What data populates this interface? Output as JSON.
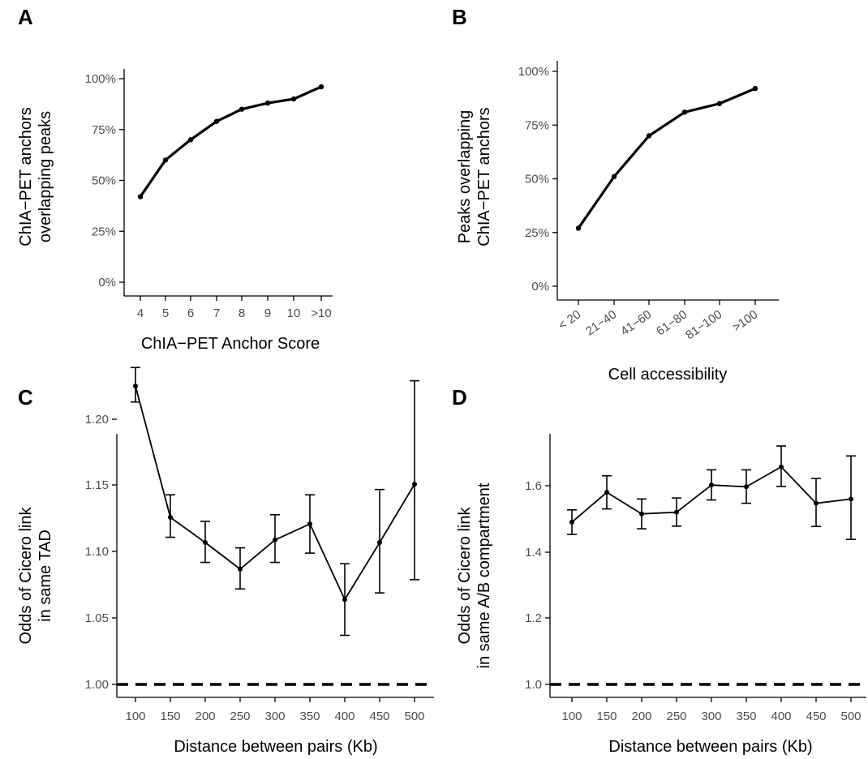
{
  "chart_data": [
    {
      "panel": "A",
      "type": "line",
      "categories": [
        "4",
        "5",
        "6",
        "7",
        "8",
        "9",
        "10",
        ">10"
      ],
      "values": [
        42,
        60,
        70,
        79,
        85,
        88,
        90,
        96
      ],
      "xlabel": "ChIA−PET Anchor Score",
      "ylabel": [
        "ChIA−PET anchors",
        "overlapping peaks"
      ],
      "yticks": [
        "0%",
        "25%",
        "50%",
        "75%",
        "100%"
      ],
      "ylim": [
        0,
        100
      ]
    },
    {
      "panel": "B",
      "type": "line",
      "categories": [
        "< 20",
        "21−40",
        "41−60",
        "61−80",
        "81−100",
        ">100"
      ],
      "values": [
        27,
        51,
        70,
        81,
        85,
        92
      ],
      "xlabel": "Cell accessibility",
      "ylabel": [
        "Peaks overlapping",
        "ChIA−PET anchors"
      ],
      "yticks": [
        "0%",
        "25%",
        "50%",
        "75%",
        "100%"
      ],
      "ylim": [
        0,
        100
      ]
    },
    {
      "panel": "C",
      "type": "line",
      "x": [
        100,
        150,
        200,
        250,
        300,
        350,
        400,
        450,
        500
      ],
      "values": [
        1.225,
        1.126,
        1.107,
        1.087,
        1.109,
        1.121,
        1.064,
        1.107,
        1.151
      ],
      "err_low": [
        1.213,
        1.111,
        1.092,
        1.072,
        1.092,
        1.099,
        1.037,
        1.069,
        1.079
      ],
      "err_high": [
        1.239,
        1.143,
        1.123,
        1.103,
        1.128,
        1.143,
        1.091,
        1.147,
        1.229
      ],
      "reference_line": 1.0,
      "xlabel": "Distance between pairs (Kb)",
      "ylabel": [
        "Odds of Cicero link",
        "in same TAD"
      ],
      "xticks": [
        "100",
        "150",
        "200",
        "250",
        "300",
        "350",
        "400",
        "450",
        "500"
      ],
      "yticks": [
        "1.00",
        "1.05",
        "1.10",
        "1.15",
        "1.20"
      ],
      "ylim": [
        0.99,
        1.245
      ]
    },
    {
      "panel": "D",
      "type": "line",
      "x": [
        100,
        150,
        200,
        250,
        300,
        350,
        400,
        450,
        500
      ],
      "values": [
        1.49,
        1.58,
        1.515,
        1.52,
        1.602,
        1.597,
        1.657,
        1.547,
        1.56
      ],
      "err_low": [
        1.453,
        1.53,
        1.47,
        1.478,
        1.557,
        1.547,
        1.598,
        1.477,
        1.438
      ],
      "err_high": [
        1.527,
        1.63,
        1.56,
        1.563,
        1.648,
        1.648,
        1.72,
        1.622,
        1.69
      ],
      "reference_line": 1.0,
      "xlabel": "Distance between pairs (Kb)",
      "ylabel": [
        "Odds of Cicero link",
        "in same A/B compartment"
      ],
      "xticks": [
        "100",
        "150",
        "200",
        "250",
        "300",
        "350",
        "400",
        "450",
        "500"
      ],
      "yticks": [
        "1.0",
        "1.2",
        "1.4",
        "1.6"
      ],
      "ylim": [
        0.97,
        1.76
      ]
    }
  ]
}
